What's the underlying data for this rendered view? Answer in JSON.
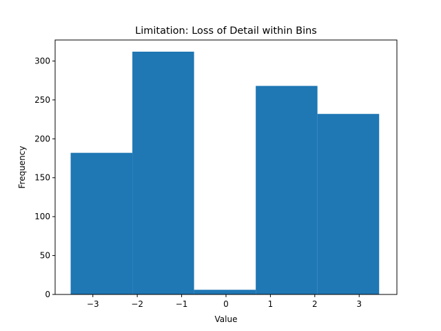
{
  "chart_data": {
    "type": "bar",
    "title": "Limitation: Loss of Detail within Bins",
    "xlabel": "Value",
    "ylabel": "Frequency",
    "bins": [
      {
        "x0": -3.5,
        "x1": -2.11,
        "value": 182
      },
      {
        "x0": -2.11,
        "x1": -0.72,
        "value": 312
      },
      {
        "x0": -0.72,
        "x1": 0.67,
        "value": 6
      },
      {
        "x0": 0.67,
        "x1": 2.06,
        "value": 268
      },
      {
        "x0": 2.06,
        "x1": 3.45,
        "value": 232
      }
    ],
    "xlim": [
      -3.85,
      3.85
    ],
    "ylim": [
      0,
      327
    ],
    "xticks": [
      -3,
      -2,
      -1,
      0,
      1,
      2,
      3
    ],
    "xtick_labels": [
      "−3",
      "−2",
      "−1",
      "0",
      "1",
      "2",
      "3"
    ],
    "yticks": [
      0,
      50,
      100,
      150,
      200,
      250,
      300
    ],
    "ytick_labels": [
      "0",
      "50",
      "100",
      "150",
      "200",
      "250",
      "300"
    ],
    "bar_color": "#1f77b4",
    "grid": false,
    "legend": "none"
  }
}
